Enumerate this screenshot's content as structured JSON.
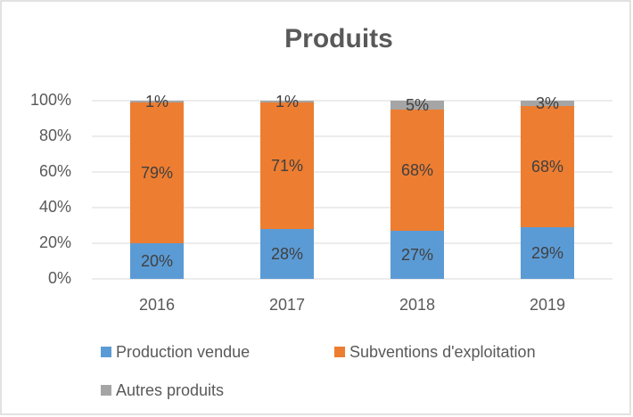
{
  "chart_data": {
    "type": "stacked_bar",
    "title": "Produits",
    "categories": [
      "2016",
      "2017",
      "2018",
      "2019"
    ],
    "series": [
      {
        "name": "Production vendue",
        "color": "#5b9bd5",
        "values": [
          20,
          28,
          27,
          29
        ],
        "value_labels": [
          "20%",
          "28%",
          "27%",
          "29%"
        ]
      },
      {
        "name": "Subventions d'exploitation",
        "color": "#ed7d31",
        "values": [
          79,
          71,
          68,
          68
        ],
        "value_labels": [
          "79%",
          "71%",
          "68%",
          "68%"
        ]
      },
      {
        "name": "Autres produits",
        "color": "#a5a5a5",
        "values": [
          1,
          1,
          5,
          3
        ],
        "value_labels": [
          "1%",
          "1%",
          "5%",
          "3%"
        ]
      }
    ],
    "ylim": [
      0,
      100
    ],
    "yticks": [
      {
        "value": 0,
        "label": "0%"
      },
      {
        "value": 20,
        "label": "20%"
      },
      {
        "value": 40,
        "label": "40%"
      },
      {
        "value": 60,
        "label": "60%"
      },
      {
        "value": 80,
        "label": "80%"
      },
      {
        "value": 100,
        "label": "100%"
      }
    ],
    "grid": true,
    "legend": "bottom"
  }
}
